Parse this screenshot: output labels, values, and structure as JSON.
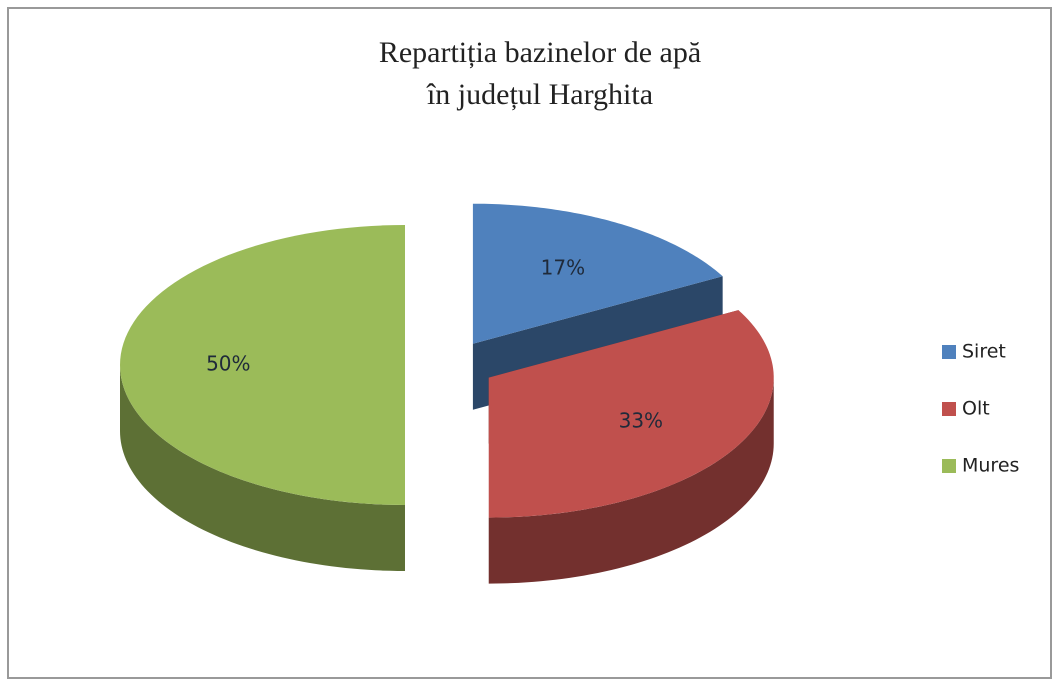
{
  "chart_data": {
    "type": "pie3d",
    "title": [
      "Repartiția bazinelor de apă",
      "în județul Harghita"
    ],
    "categories": [
      "Siret",
      "Olt",
      "Mures"
    ],
    "values": [
      17,
      33,
      50
    ],
    "value_labels": [
      "17%",
      "33%",
      "50%"
    ],
    "colors": [
      "#4f81bd",
      "#c0504d",
      "#9bbb59"
    ],
    "legend": "right"
  }
}
